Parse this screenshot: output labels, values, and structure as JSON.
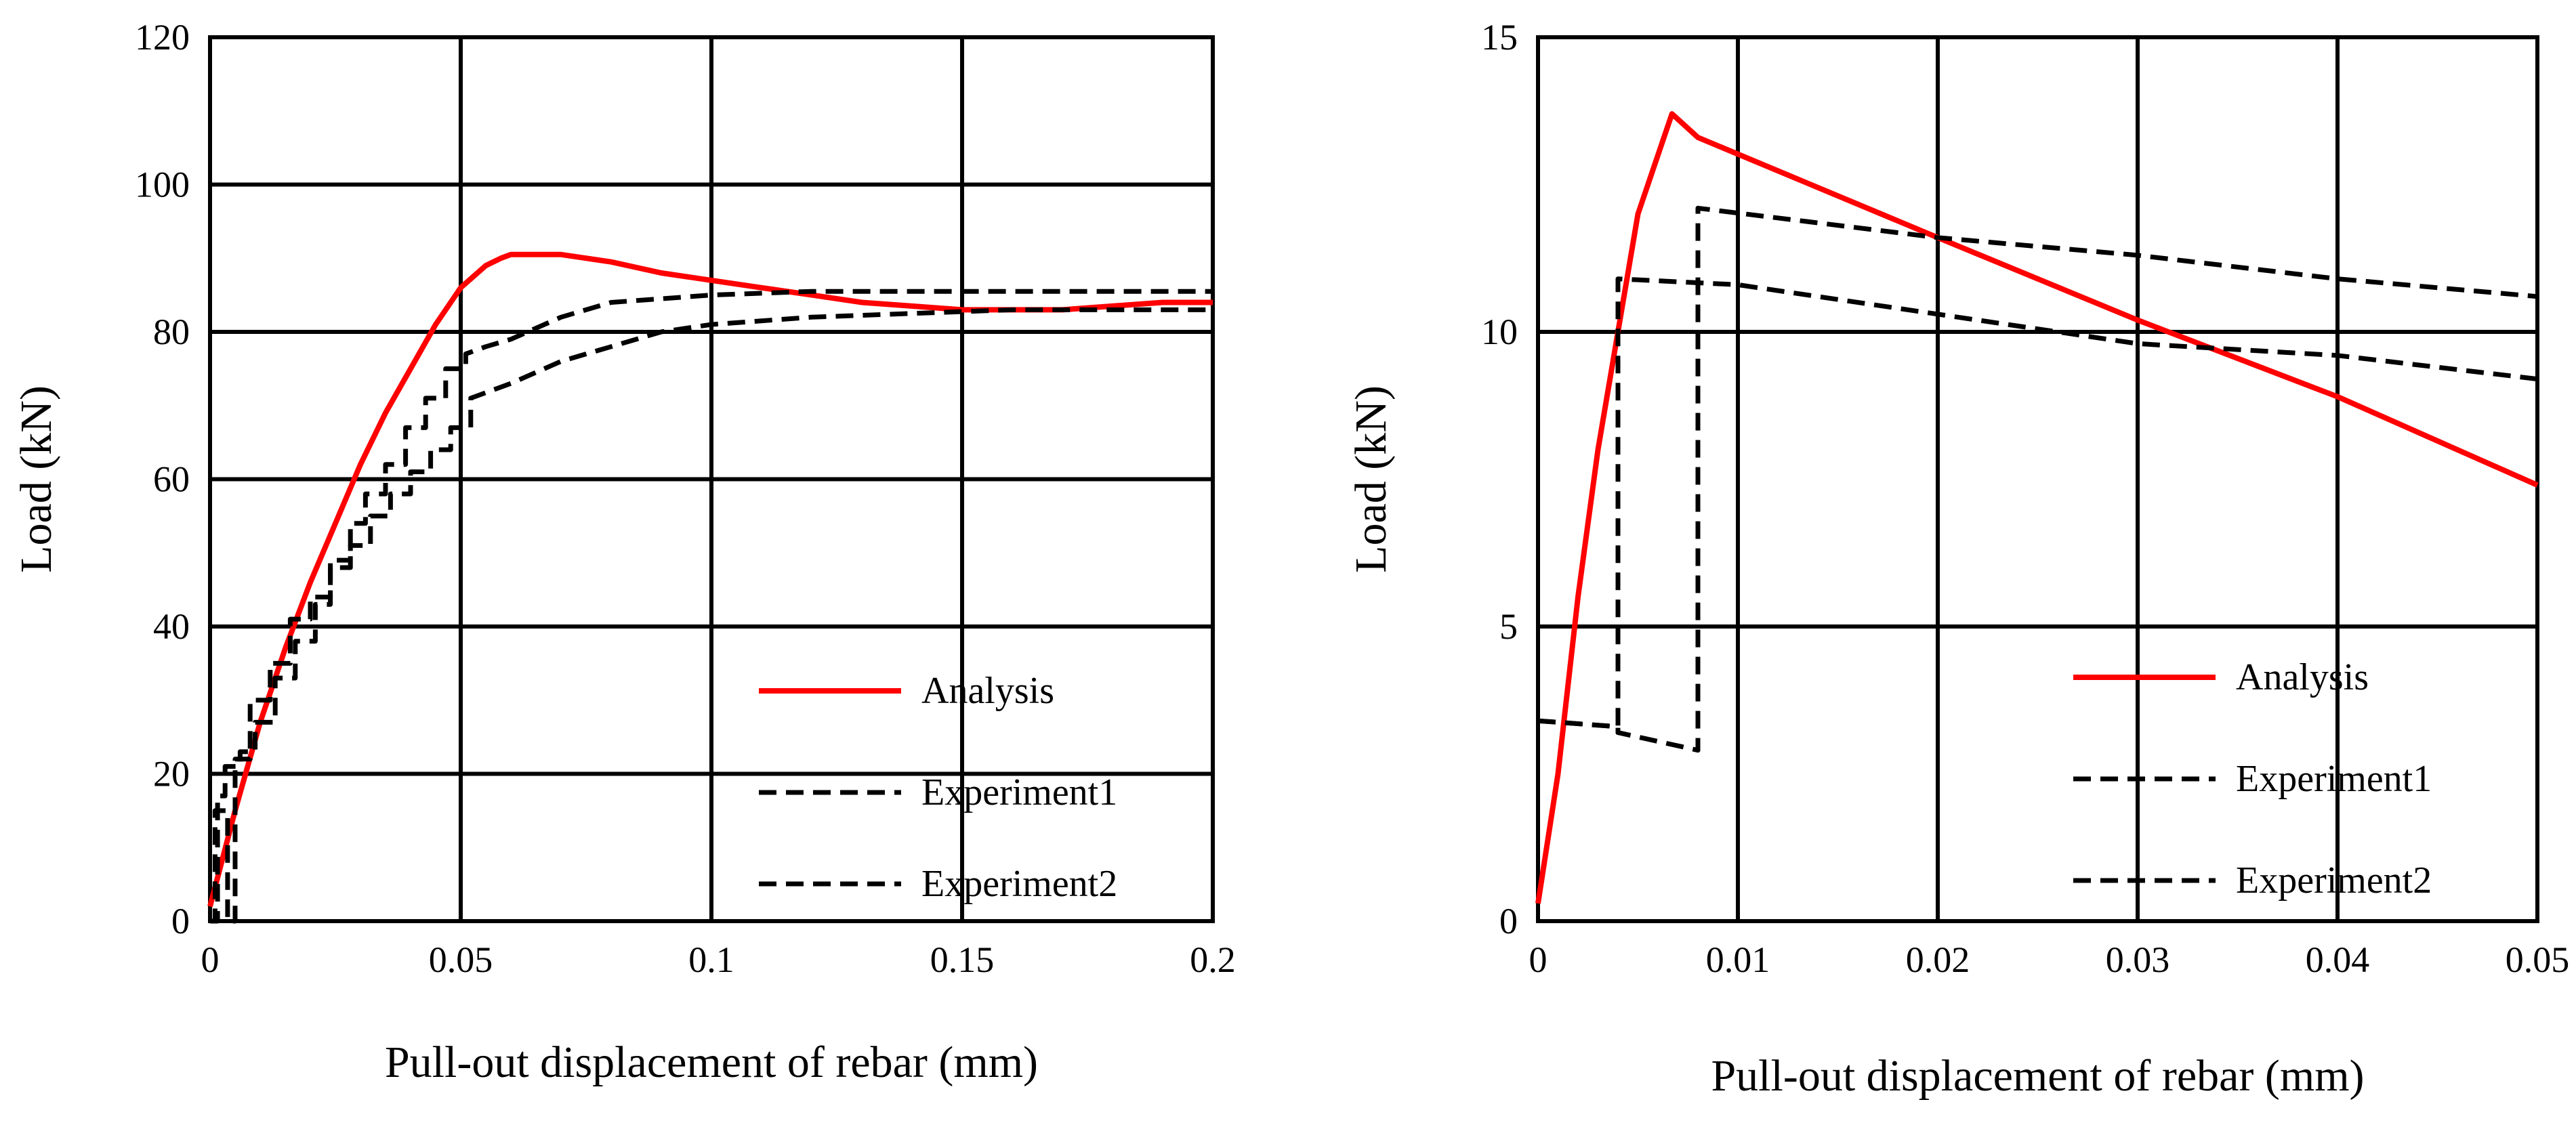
{
  "figure_name": "pull-out-load-displacement-comparison",
  "colors": {
    "analysis": "#ff0000",
    "experiment": "#000000",
    "grid": "#000000",
    "background": "#ffffff"
  },
  "chart_data": [
    {
      "type": "line",
      "xlabel": "Pull-out displacement of rebar (mm)",
      "ylabel": "Load (kN)",
      "xlim": [
        0,
        0.2
      ],
      "ylim": [
        0,
        120
      ],
      "x_ticks": [
        0,
        0.05,
        0.1,
        0.15,
        0.2
      ],
      "x_tick_labels": [
        "0",
        "0.05",
        "0.1",
        "0.15",
        "0.2"
      ],
      "y_ticks": [
        0,
        20,
        40,
        60,
        80,
        100,
        120
      ],
      "y_tick_labels": [
        "0",
        "20",
        "40",
        "60",
        "80",
        "100",
        "120"
      ],
      "grid": true,
      "legend_position": "bottom-right",
      "series": [
        {
          "name": "Analysis",
          "style": "solid",
          "color": "#ff0000",
          "x": [
            0,
            0.005,
            0.01,
            0.015,
            0.02,
            0.025,
            0.03,
            0.035,
            0.04,
            0.045,
            0.05,
            0.055,
            0.058,
            0.06,
            0.07,
            0.08,
            0.09,
            0.1,
            0.11,
            0.12,
            0.13,
            0.14,
            0.15,
            0.16,
            0.17,
            0.18,
            0.19,
            0.2
          ],
          "y": [
            2,
            15,
            27,
            37,
            46,
            54,
            62,
            69,
            75,
            81,
            86,
            89,
            90,
            90.5,
            90.5,
            89.5,
            88,
            87,
            86,
            85,
            84,
            83.5,
            83,
            83,
            83,
            83.5,
            84,
            84
          ]
        },
        {
          "name": "Experiment1",
          "style": "dashed",
          "color": "#000000",
          "x": [
            0,
            0.0015,
            0.0015,
            0.003,
            0.003,
            0.006,
            0.006,
            0.009,
            0.009,
            0.013,
            0.013,
            0.017,
            0.017,
            0.021,
            0.021,
            0.024,
            0.024,
            0.028,
            0.028,
            0.031,
            0.031,
            0.035,
            0.035,
            0.039,
            0.039,
            0.043,
            0.043,
            0.047,
            0.047,
            0.051,
            0.051,
            0.055,
            0.06,
            0.065,
            0.07,
            0.075,
            0.08,
            0.09,
            0.1,
            0.12,
            0.14,
            0.16,
            0.18,
            0.2
          ],
          "y": [
            0,
            0,
            17,
            17,
            21,
            21,
            23,
            23,
            27,
            27,
            33,
            33,
            38,
            38,
            43,
            43,
            49,
            49,
            54,
            54,
            58,
            58,
            62,
            62,
            67,
            67,
            71,
            71,
            75,
            75,
            77,
            78,
            79,
            80.5,
            82,
            83,
            84,
            84.5,
            85,
            85.5,
            85.5,
            85.5,
            85.5,
            85.5
          ]
        },
        {
          "name": "Experiment2",
          "style": "dashed",
          "color": "#000000",
          "x": [
            0,
            0.001,
            0.001,
            0.0035,
            0.0035,
            0.005,
            0.005,
            0.008,
            0.008,
            0.012,
            0.012,
            0.016,
            0.016,
            0.02,
            0.02,
            0.024,
            0.024,
            0.028,
            0.028,
            0.032,
            0.032,
            0.036,
            0.036,
            0.04,
            0.04,
            0.044,
            0.044,
            0.048,
            0.048,
            0.052,
            0.052,
            0.06,
            0.07,
            0.08,
            0.09,
            0.1,
            0.12,
            0.14,
            0.16,
            0.18,
            0.2
          ],
          "y": [
            0,
            0,
            15,
            15,
            0,
            0,
            22,
            22,
            30,
            30,
            35,
            35,
            41,
            41,
            44,
            44,
            48,
            48,
            51,
            51,
            55,
            55,
            58,
            58,
            61,
            61,
            64,
            64,
            67,
            67,
            71,
            73,
            76,
            78,
            80,
            81,
            82,
            82.5,
            83,
            83,
            83
          ]
        }
      ]
    },
    {
      "type": "line",
      "xlabel": "Pull-out displacement of rebar (mm)",
      "ylabel": "Load (kN)",
      "xlim": [
        0,
        0.05
      ],
      "ylim": [
        0,
        15
      ],
      "x_ticks": [
        0,
        0.01,
        0.02,
        0.03,
        0.04,
        0.05
      ],
      "x_tick_labels": [
        "0",
        "0.01",
        "0.02",
        "0.03",
        "0.04",
        "0.05"
      ],
      "y_ticks": [
        0,
        5,
        10,
        15
      ],
      "y_tick_labels": [
        "0",
        "5",
        "10",
        "15"
      ],
      "grid": true,
      "legend_position": "bottom-right",
      "series": [
        {
          "name": "Analysis",
          "style": "solid",
          "color": "#ff0000",
          "x": [
            0,
            0.001,
            0.002,
            0.003,
            0.004,
            0.005,
            0.006,
            0.0067,
            0.008,
            0.02,
            0.03,
            0.04,
            0.05
          ],
          "y": [
            0.3,
            2.5,
            5.5,
            8,
            10,
            12,
            13,
            13.7,
            13.3,
            11.6,
            10.2,
            8.9,
            7.4
          ]
        },
        {
          "name": "Experiment1",
          "style": "dashed",
          "color": "#000000",
          "x": [
            0,
            0.004,
            0.004,
            0.008,
            0.008,
            0.02,
            0.03,
            0.04,
            0.05
          ],
          "y": [
            3.4,
            3.3,
            3.2,
            2.9,
            12.1,
            11.6,
            11.3,
            10.9,
            10.6
          ]
        },
        {
          "name": "Experiment2",
          "style": "dashed",
          "color": "#000000",
          "x": [
            0,
            0.004,
            0.004,
            0.01,
            0.02,
            0.03,
            0.04,
            0.05
          ],
          "y": [
            3.4,
            3.3,
            10.9,
            10.8,
            10.3,
            9.8,
            9.6,
            9.2
          ]
        }
      ]
    }
  ]
}
